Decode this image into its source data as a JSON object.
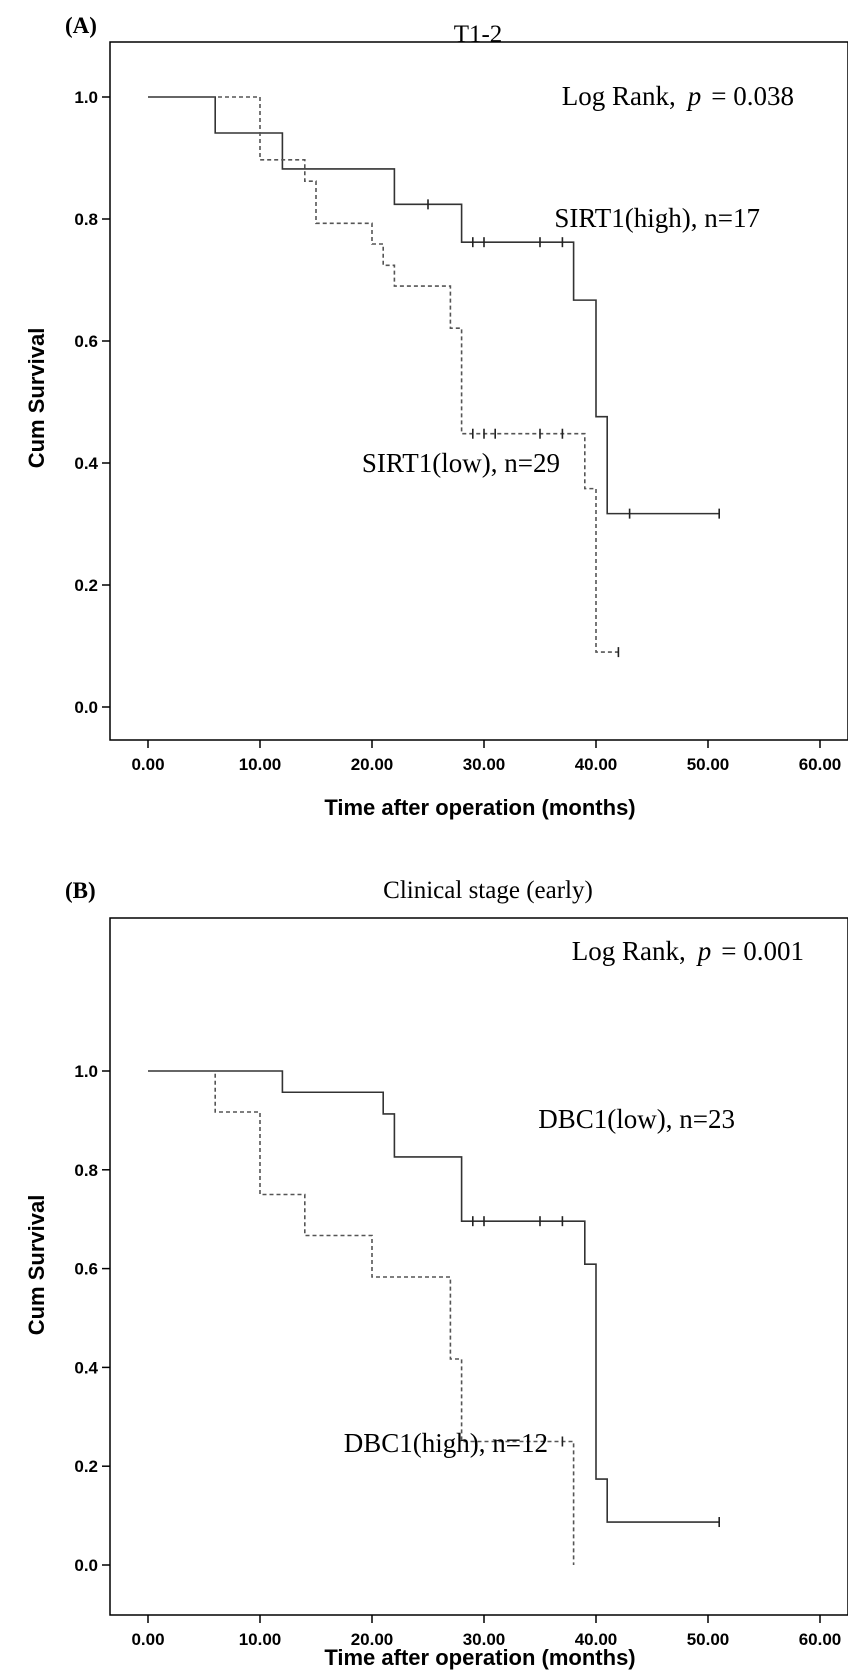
{
  "chart_data": [
    {
      "type": "line",
      "panel_label": "(A)",
      "title": "T1-2",
      "xlabel": "Time after operation (months)",
      "ylabel": "Cum Survival",
      "xlim": [
        0,
        60
      ],
      "ylim": [
        0,
        1
      ],
      "xticks": [
        "0.00",
        "10.00",
        "20.00",
        "30.00",
        "40.00",
        "50.00",
        "60.00"
      ],
      "yticks": [
        "0.0",
        "0.2",
        "0.4",
        "0.6",
        "0.8",
        "1.0"
      ],
      "annotation_prefix": "Log Rank,",
      "annotation_p": "p",
      "annotation_value": "= 0.038",
      "series": [
        {
          "name": "SIRT1(high), n=17",
          "style": "solid",
          "x": [
            0,
            6,
            12,
            22,
            28,
            38,
            40,
            41,
            51
          ],
          "y": [
            1.0,
            0.941,
            0.882,
            0.824,
            0.762,
            0.667,
            0.476,
            0.317,
            0.317
          ],
          "censored": [
            [
              25,
              0.824
            ],
            [
              29,
              0.762
            ],
            [
              30,
              0.762
            ],
            [
              35,
              0.762
            ],
            [
              37,
              0.762
            ],
            [
              43,
              0.317
            ],
            [
              51,
              0.317
            ]
          ]
        },
        {
          "name": "SIRT1(low), n=29",
          "style": "dashed",
          "x": [
            0,
            10,
            14,
            15,
            20,
            21,
            22,
            27,
            28,
            39,
            40,
            42
          ],
          "y": [
            1.0,
            0.897,
            0.862,
            0.793,
            0.759,
            0.724,
            0.69,
            0.621,
            0.448,
            0.358,
            0.09,
            0.09
          ],
          "censored": [
            [
              29,
              0.448
            ],
            [
              30,
              0.448
            ],
            [
              31,
              0.448
            ],
            [
              35,
              0.448
            ],
            [
              37,
              0.448
            ],
            [
              42,
              0.09
            ]
          ]
        }
      ]
    },
    {
      "type": "line",
      "panel_label": "(B)",
      "title": "Clinical stage (early)",
      "xlabel": "Time after operation (months)",
      "ylabel": "Cum Survival",
      "xlim": [
        0,
        60
      ],
      "ylim": [
        0,
        1
      ],
      "xticks": [
        "0.00",
        "10.00",
        "20.00",
        "30.00",
        "40.00",
        "50.00",
        "60.00"
      ],
      "yticks": [
        "0.0",
        "0.2",
        "0.4",
        "0.6",
        "0.8",
        "1.0"
      ],
      "annotation_prefix": "Log Rank,",
      "annotation_p": "p",
      "annotation_value": "= 0.001",
      "series": [
        {
          "name": "DBC1(low), n=23",
          "style": "solid",
          "x": [
            0,
            12,
            21,
            22,
            28,
            39,
            40,
            41,
            51
          ],
          "y": [
            1.0,
            0.957,
            0.913,
            0.826,
            0.696,
            0.609,
            0.174,
            0.087,
            0.087
          ],
          "censored": [
            [
              29,
              0.696
            ],
            [
              30,
              0.696
            ],
            [
              35,
              0.696
            ],
            [
              37,
              0.696
            ],
            [
              51,
              0.087
            ]
          ]
        },
        {
          "name": "DBC1(high), n=12",
          "style": "dashed",
          "x": [
            0,
            6,
            10,
            14,
            20,
            27,
            28,
            38
          ],
          "y": [
            1.0,
            0.917,
            0.75,
            0.667,
            0.583,
            0.417,
            0.25,
            0.0
          ],
          "censored": [
            [
              37,
              0.25
            ]
          ]
        }
      ]
    }
  ]
}
